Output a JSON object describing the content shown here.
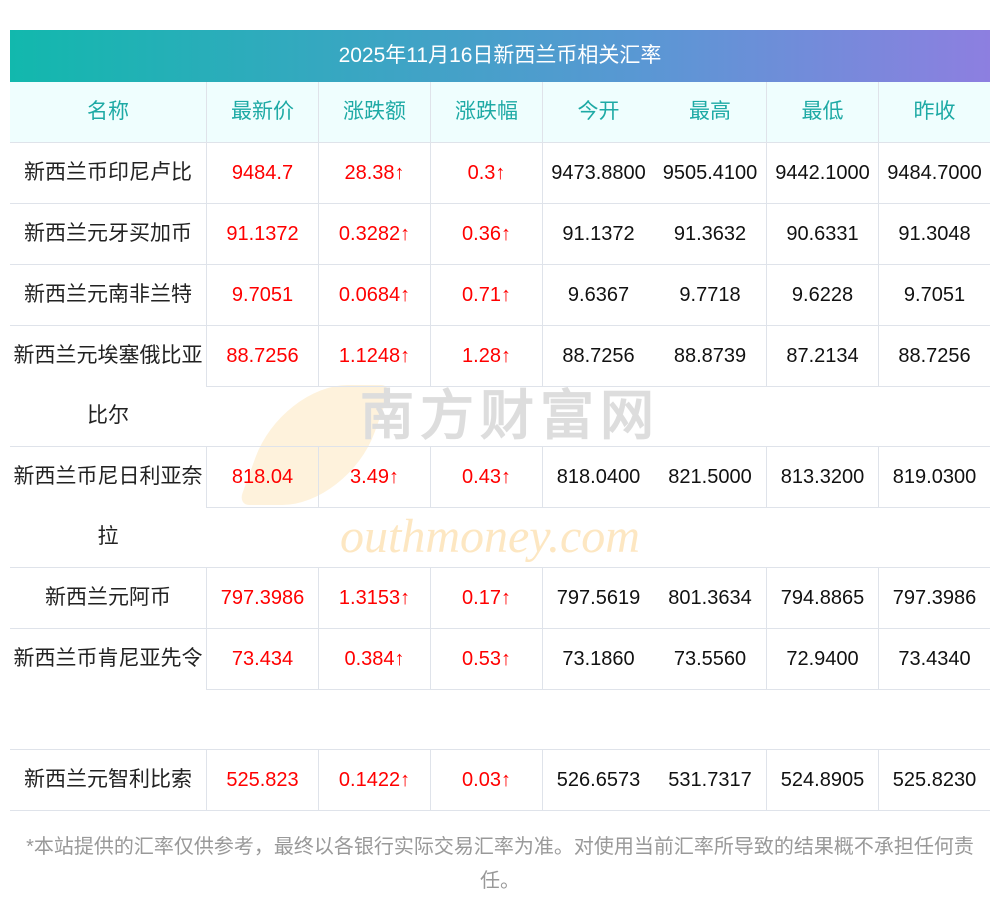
{
  "title": "2025年11月16日新西兰币相关汇率",
  "headers": [
    "名称",
    "最新价",
    "涨跌额",
    "涨跌幅",
    "今开",
    "最高",
    "最低",
    "昨收"
  ],
  "rows": [
    {
      "name": "新西兰币印尼卢比",
      "last": "9484.7",
      "chg": "28.38↑",
      "pct": "0.3↑",
      "open": "9473.8800",
      "high": "9505.4100",
      "low": "9442.1000",
      "prev": "9484.7000"
    },
    {
      "name": "新西兰元牙买加币",
      "last": "91.1372",
      "chg": "0.3282↑",
      "pct": "0.36↑",
      "open": "91.1372",
      "high": "91.3632",
      "low": "90.6331",
      "prev": "91.3048"
    },
    {
      "name": "新西兰元南非兰特",
      "last": "9.7051",
      "chg": "0.0684↑",
      "pct": "0.71↑",
      "open": "9.6367",
      "high": "9.7718",
      "low": "9.6228",
      "prev": "9.7051"
    },
    {
      "name": "新西兰元埃塞俄比亚比尔",
      "last": "88.7256",
      "chg": "1.1248↑",
      "pct": "1.28↑",
      "open": "88.7256",
      "high": "88.8739",
      "low": "87.2134",
      "prev": "88.7256"
    },
    {
      "name": "新西兰币尼日利亚奈拉",
      "last": "818.04",
      "chg": "3.49↑",
      "pct": "0.43↑",
      "open": "818.0400",
      "high": "821.5000",
      "low": "813.3200",
      "prev": "819.0300"
    },
    {
      "name": "新西兰元阿币",
      "last": "797.3986",
      "chg": "1.3153↑",
      "pct": "0.17↑",
      "open": "797.5619",
      "high": "801.3634",
      "low": "794.8865",
      "prev": "797.3986"
    },
    {
      "name": "新西兰币肯尼亚先令",
      "last": "73.434",
      "chg": "0.384↑",
      "pct": "0.53↑",
      "open": "73.1860",
      "high": "73.5560",
      "low": "72.9400",
      "prev": "73.4340"
    },
    {
      "name": "新西兰元智利比索",
      "last": "525.823",
      "chg": "0.1422↑",
      "pct": "0.03↑",
      "open": "526.6573",
      "high": "531.7317",
      "low": "524.8905",
      "prev": "525.8230"
    }
  ],
  "watermark": {
    "cn": "南方财富网",
    "en": "outhmoney.com"
  },
  "footer": "*本站提供的汇率仅供参考，最终以各银行实际交易汇率为准。对使用当前汇率所导致的结果概不承担任何责任。"
}
